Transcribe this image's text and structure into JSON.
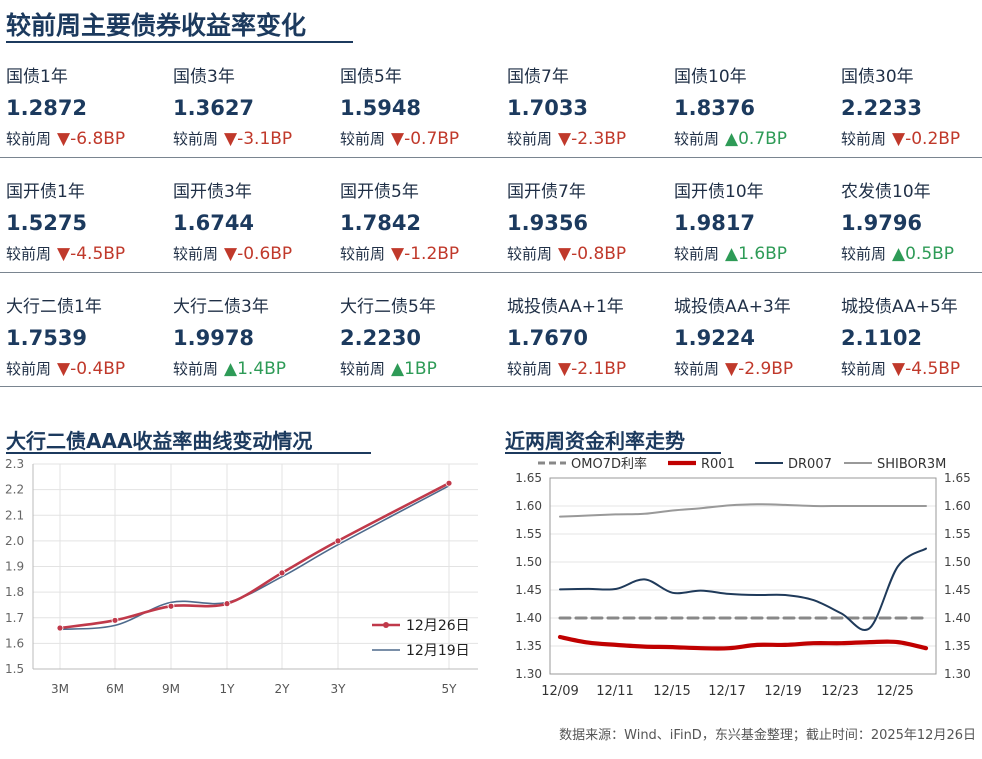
{
  "title": "较前周主要债券收益率变化",
  "change_prefix": "较前周",
  "rows": [
    [
      {
        "name": "国债1年",
        "value": "1.2872",
        "arrow": "▼",
        "change": "-6.8BP",
        "dir": "down"
      },
      {
        "name": "国债3年",
        "value": "1.3627",
        "arrow": "▼",
        "change": "-3.1BP",
        "dir": "down"
      },
      {
        "name": "国债5年",
        "value": "1.5948",
        "arrow": "▼",
        "change": "-0.7BP",
        "dir": "down"
      },
      {
        "name": "国债7年",
        "value": "1.7033",
        "arrow": "▼",
        "change": "-2.3BP",
        "dir": "down"
      },
      {
        "name": "国债10年",
        "value": "1.8376",
        "arrow": "▲",
        "change": "0.7BP",
        "dir": "up"
      },
      {
        "name": "国债30年",
        "value": "2.2233",
        "arrow": "▼",
        "change": "-0.2BP",
        "dir": "down"
      }
    ],
    [
      {
        "name": "国开债1年",
        "value": "1.5275",
        "arrow": "▼",
        "change": "-4.5BP",
        "dir": "down"
      },
      {
        "name": "国开债3年",
        "value": "1.6744",
        "arrow": "▼",
        "change": "-0.6BP",
        "dir": "down"
      },
      {
        "name": "国开债5年",
        "value": "1.7842",
        "arrow": "▼",
        "change": "-1.2BP",
        "dir": "down"
      },
      {
        "name": "国开债7年",
        "value": "1.9356",
        "arrow": "▼",
        "change": "-0.8BP",
        "dir": "down"
      },
      {
        "name": "国开债10年",
        "value": "1.9817",
        "arrow": "▲",
        "change": "1.6BP",
        "dir": "up"
      },
      {
        "name": "农发债10年",
        "value": "1.9796",
        "arrow": "▲",
        "change": "0.5BP",
        "dir": "up"
      }
    ],
    [
      {
        "name": "大行二债1年",
        "value": "1.7539",
        "arrow": "▼",
        "change": "-0.4BP",
        "dir": "down"
      },
      {
        "name": "大行二债3年",
        "value": "1.9978",
        "arrow": "▲",
        "change": "1.4BP",
        "dir": "up"
      },
      {
        "name": "大行二债5年",
        "value": "2.2230",
        "arrow": "▲",
        "change": "1BP",
        "dir": "up"
      },
      {
        "name": "城投债AA+1年",
        "value": "1.7670",
        "arrow": "▼",
        "change": "-2.1BP",
        "dir": "down"
      },
      {
        "name": "城投债AA+3年",
        "value": "1.9224",
        "arrow": "▼",
        "change": "-2.9BP",
        "dir": "down"
      },
      {
        "name": "城投债AA+5年",
        "value": "2.1102",
        "arrow": "▼",
        "change": "-4.5BP",
        "dir": "down"
      }
    ]
  ],
  "colors": {
    "down": "#c0392b",
    "up": "#2e9b57",
    "title": "#1c3a5e"
  },
  "footer": "数据来源：Wind、iFinD，东兴基金整理；截止时间：2025年12月26日",
  "chart_data": [
    {
      "type": "line",
      "title": "大行二债AAA收益率曲线变动情况",
      "categories": [
        "3M",
        "6M",
        "9M",
        "1Y",
        "2Y",
        "3Y",
        "5Y"
      ],
      "x": [
        0.25,
        0.5,
        0.75,
        1,
        1.5,
        2,
        3
      ],
      "ylim": [
        1.5,
        2.3
      ],
      "yticks": [
        "1.5",
        "1.6",
        "1.7",
        "1.8",
        "1.9",
        "2.0",
        "2.1",
        "2.2",
        "2.3"
      ],
      "legend_position": "bottom-right",
      "series": [
        {
          "name": "12月26日",
          "color": "#c0394a",
          "markers": true,
          "values": [
            1.66,
            1.69,
            1.745,
            1.755,
            1.875,
            2.0,
            2.225
          ]
        },
        {
          "name": "12月19日",
          "color": "#4e6a8c",
          "markers": false,
          "values": [
            1.655,
            1.67,
            1.76,
            1.76,
            1.86,
            1.985,
            2.215
          ]
        }
      ]
    },
    {
      "type": "line",
      "title": "近两周资金利率走势",
      "xlabels": [
        "12/09",
        "12/11",
        "12/15",
        "12/17",
        "12/19",
        "12/23",
        "12/25"
      ],
      "ylim": [
        1.3,
        1.65
      ],
      "yticks": [
        "1.65",
        "1.60",
        "1.55",
        "1.50",
        "1.45",
        "1.40",
        "1.35",
        "1.30"
      ],
      "legend_position": "top",
      "series": [
        {
          "name": "OMO7D利率",
          "color": "#888888",
          "style": "dashed",
          "values": [
            1.4,
            1.4,
            1.4,
            1.4,
            1.4,
            1.4,
            1.4,
            1.4,
            1.4,
            1.4,
            1.4,
            1.4,
            1.4,
            1.4
          ]
        },
        {
          "name": "R001",
          "color": "#c00000",
          "style": "thick",
          "values": [
            1.366,
            1.356,
            1.352,
            1.349,
            1.348,
            1.346,
            1.346,
            1.352,
            1.352,
            1.355,
            1.355,
            1.357,
            1.357,
            1.346
          ]
        },
        {
          "name": "DR007",
          "color": "#1f3a5a",
          "style": "solid",
          "values": [
            1.451,
            1.452,
            1.452,
            1.469,
            1.445,
            1.449,
            1.443,
            1.441,
            1.441,
            1.432,
            1.408,
            1.382,
            1.492,
            1.524
          ]
        },
        {
          "name": "SHIBOR3M",
          "color": "#999999",
          "style": "solid",
          "values": [
            1.581,
            1.583,
            1.585,
            1.586,
            1.592,
            1.596,
            1.601,
            1.603,
            1.602,
            1.6,
            1.6,
            1.6,
            1.6,
            1.6
          ]
        }
      ]
    }
  ]
}
